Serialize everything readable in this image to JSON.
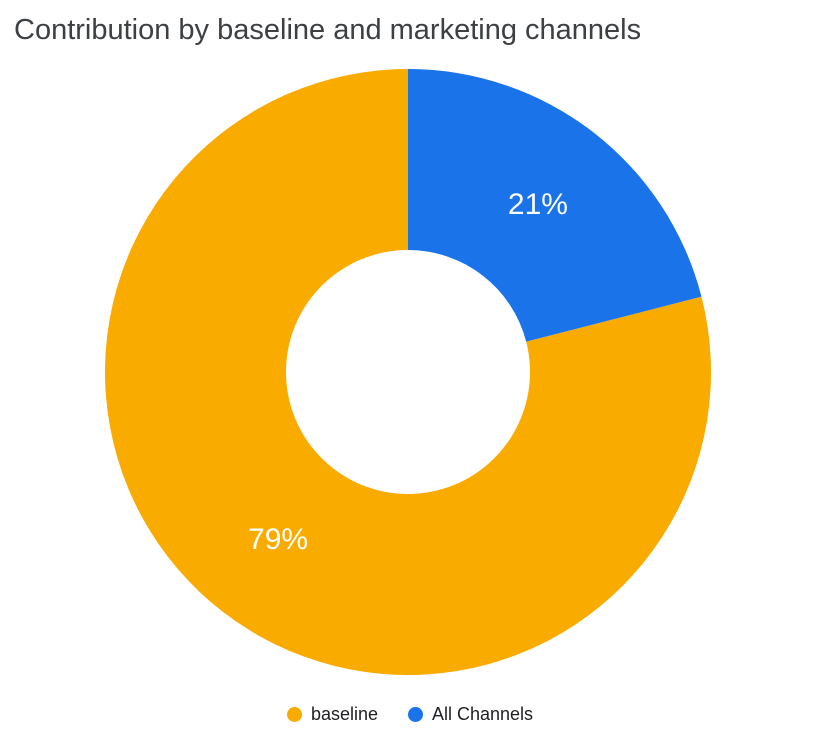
{
  "title": "Contribution by baseline and marketing channels",
  "chart_data": {
    "type": "pie",
    "subtype": "donut",
    "title": "Contribution by baseline and marketing channels",
    "categories": [
      "baseline",
      "All Channels"
    ],
    "values": [
      79,
      21
    ],
    "series": [
      {
        "name": "baseline",
        "value": 79,
        "label": "79%",
        "color": "#F9AB00"
      },
      {
        "name": "All Channels",
        "value": 21,
        "label": "21%",
        "color": "#1A73E8"
      }
    ],
    "unit": "%",
    "rotation_deg": -90,
    "direction": "counterclockwise",
    "inner_radius_ratio": 0.4,
    "slice_label_color": "#FFFFFF",
    "legend_position": "bottom",
    "grid": false
  },
  "legend": {
    "items": [
      {
        "label": "baseline",
        "color": "#F9AB00"
      },
      {
        "label": "All Channels",
        "color": "#1A73E8"
      }
    ]
  }
}
